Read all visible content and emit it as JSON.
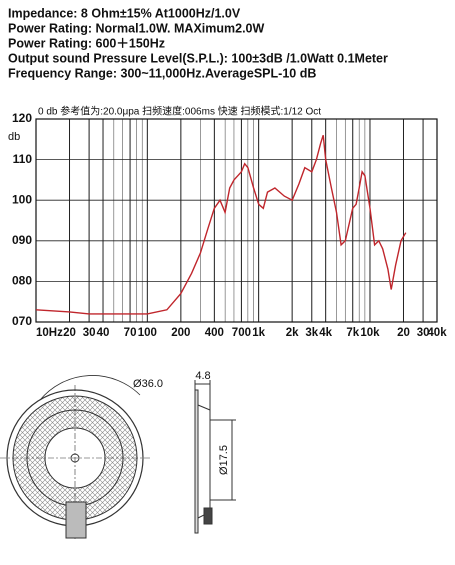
{
  "specs": [
    "Impedance: 8 Ohm±15%  At1000Hz/1.0V",
    "Power Rating: Normal1.0W. MAXimum2.0W",
    "Power Rating: 600＋150Hz",
    "Output sound Pressure Level(S.P.L.): 100±3dB /1.0Watt 0.1Meter",
    "Frequency Range: 300~11,000Hz.AverageSPL-10 dB"
  ],
  "chart_data": {
    "type": "line",
    "subtitle": "0 db  参考值为:20.0μpa  扫频速度:006ms  快速  扫频模式:1/12  Oct",
    "y_label": "db",
    "log_x": true,
    "grid": true,
    "xlim": [
      10,
      40000
    ],
    "ylim": [
      70,
      120
    ],
    "xticks": [
      {
        "value": 10,
        "label": "10Hz"
      },
      20,
      30,
      40,
      70,
      100,
      200,
      400,
      700,
      {
        "value": 1000,
        "label": "1k"
      },
      {
        "value": 2000,
        "label": "2k"
      },
      {
        "value": 3000,
        "label": "3k"
      },
      {
        "value": 4000,
        "label": "4k"
      },
      {
        "value": 7000,
        "label": "7k"
      },
      {
        "value": 10000,
        "label": "10k"
      },
      {
        "value": 20000,
        "label": "20"
      },
      {
        "value": 30000,
        "label": "30"
      },
      {
        "value": 40000,
        "label": "40k"
      }
    ],
    "yticks": [
      {
        "value": 70,
        "label": "070"
      },
      {
        "value": 80,
        "label": "080"
      },
      {
        "value": 90,
        "label": "090"
      },
      100,
      110,
      120
    ],
    "series": [
      {
        "color": "#c0262c",
        "x": [
          10,
          20,
          30,
          50,
          70,
          100,
          150,
          200,
          250,
          300,
          350,
          400,
          450,
          500,
          550,
          600,
          700,
          750,
          800,
          900,
          1000,
          1100,
          1200,
          1400,
          1700,
          2000,
          2300,
          2600,
          3000,
          3300,
          3600,
          3800,
          4000,
          4500,
          5000,
          5500,
          6000,
          7000,
          7500,
          8000,
          8500,
          9000,
          10000,
          11000,
          12000,
          13000,
          14500,
          15500,
          17000,
          19000,
          21000
        ],
        "values": [
          73,
          72.5,
          72,
          72,
          72,
          72,
          73,
          77,
          82,
          87,
          93,
          98,
          100,
          97,
          103,
          105,
          107,
          109,
          108,
          103,
          99,
          98,
          102,
          103,
          101,
          100,
          104,
          108,
          107,
          110,
          114,
          116,
          110,
          103,
          97,
          89,
          90,
          98,
          99,
          103,
          107,
          106,
          98,
          89,
          90,
          88,
          83,
          78,
          84,
          90,
          92
        ]
      }
    ]
  },
  "drawing": {
    "outer_diameter": "Ø36.0",
    "depth": "4.8",
    "inner_diameter": "Ø17.5"
  }
}
